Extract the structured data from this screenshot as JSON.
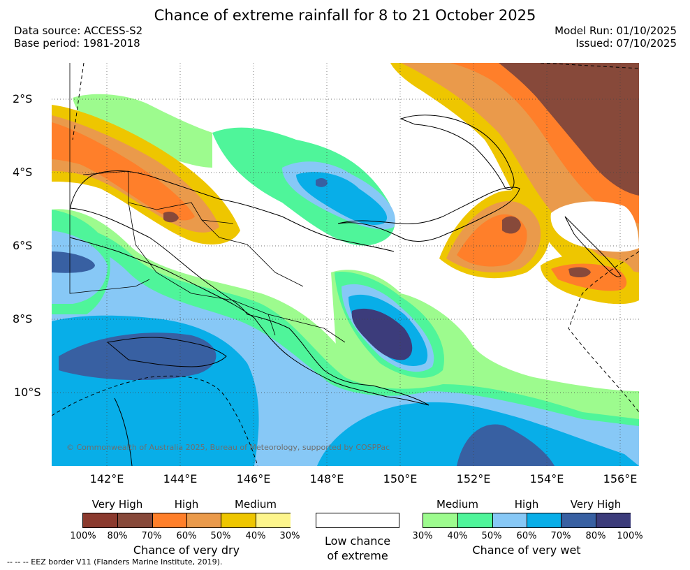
{
  "title": "Chance of extreme rainfall for 8 to 21 October 2025",
  "header": {
    "data_source": "Data source: ACCESS-S2",
    "base_period": "Base period: 1981-2018",
    "model_run": "Model Run: 01/10/2025",
    "issued": "Issued: 07/10/2025"
  },
  "map": {
    "lat_ticks": [
      "2°S",
      "4°S",
      "6°S",
      "8°S",
      "10°S"
    ],
    "lon_ticks": [
      "142°E",
      "144°E",
      "146°E",
      "148°E",
      "150°E",
      "152°E",
      "154°E",
      "156°E"
    ],
    "copyright": "© Commonwealth of Australia 2025, Bureau of Meteorology, supported by COSPPac",
    "gridlines": "dotted"
  },
  "legend": {
    "dry": {
      "levels": [
        "Very High",
        "High",
        "Medium"
      ],
      "colors": [
        "#8b3a2e",
        "#87493a",
        "#ff7f2a",
        "#ea9a4b",
        "#eec600",
        "#fdf58c"
      ],
      "percents": [
        "100%",
        "80%",
        "70%",
        "60%",
        "50%",
        "40%",
        "30%"
      ],
      "caption": "Chance of very dry"
    },
    "low": {
      "caption_line1": "Low chance",
      "caption_line2": "of extreme"
    },
    "wet": {
      "levels": [
        "Medium",
        "High",
        "Very High"
      ],
      "colors": [
        "#9dfb8e",
        "#4ff59a",
        "#87c8f6",
        "#08aee8",
        "#3860a2",
        "#3c3c7b"
      ],
      "percents": [
        "30%",
        "40%",
        "50%",
        "60%",
        "70%",
        "80%",
        "100%"
      ],
      "caption": "Chance of very wet"
    }
  },
  "footnote": "--  --  -- EEZ border V11 (Flanders Marine Institute, 2019)."
}
